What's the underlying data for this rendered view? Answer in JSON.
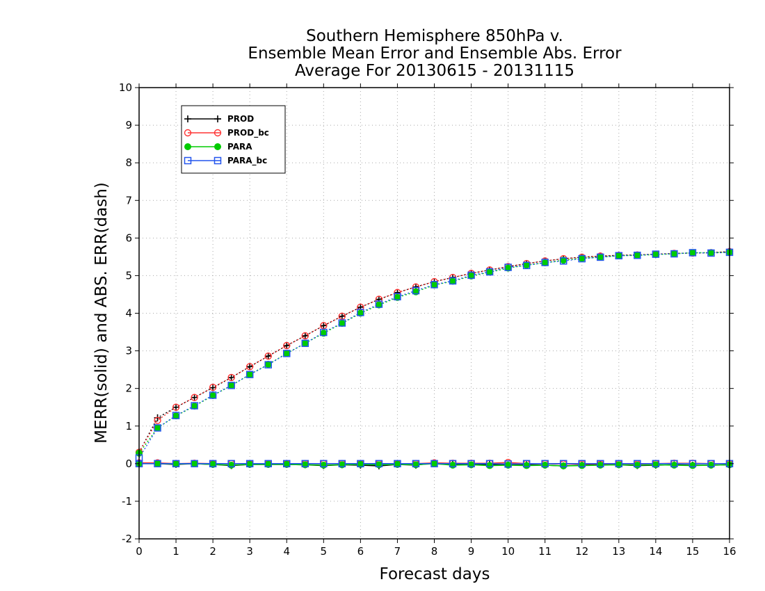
{
  "chart_data": {
    "type": "line",
    "title": [
      "Southern Hemisphere 850hPa v.",
      "Ensemble Mean Error and Ensemble Abs. Error",
      "Average For 20130615 - 20131115"
    ],
    "xlabel": "Forecast days",
    "ylabel": "MERR(solid) and ABS. ERR(dash)",
    "xlim": [
      0,
      16
    ],
    "ylim": [
      -2,
      10
    ],
    "xticks": [
      "0",
      "1",
      "2",
      "3",
      "4",
      "5",
      "6",
      "7",
      "8",
      "9",
      "10",
      "11",
      "12",
      "13",
      "14",
      "15",
      "16"
    ],
    "yticks": [
      "-2",
      "-1",
      "0",
      "1",
      "2",
      "3",
      "4",
      "5",
      "6",
      "7",
      "8",
      "9",
      "10"
    ],
    "grid": true,
    "legend_position": "top-left",
    "x": [
      0,
      0.5,
      1,
      1.5,
      2,
      2.5,
      3,
      3.5,
      4,
      4.5,
      5,
      5.5,
      6,
      6.5,
      7,
      7.5,
      8,
      8.5,
      9,
      9.5,
      10,
      10.5,
      11,
      11.5,
      12,
      12.5,
      13,
      13.5,
      14,
      14.5,
      15,
      15.5,
      16
    ],
    "series": [
      {
        "name": "PROD",
        "color": "#000000",
        "marker": "plus",
        "merr": [
          0.02,
          0.0,
          -0.02,
          0.0,
          -0.02,
          -0.05,
          -0.02,
          -0.02,
          -0.02,
          -0.03,
          -0.05,
          -0.03,
          -0.04,
          -0.06,
          -0.02,
          -0.04,
          0.02,
          -0.02,
          -0.03,
          -0.02,
          -0.04,
          -0.03,
          -0.04,
          -0.06,
          -0.04,
          -0.03,
          -0.03,
          -0.05,
          -0.04,
          -0.03,
          -0.04,
          -0.04,
          -0.03
        ],
        "abs_err": [
          0.3,
          1.22,
          1.5,
          1.76,
          2.02,
          2.29,
          2.58,
          2.86,
          3.14,
          3.4,
          3.67,
          3.92,
          4.16,
          4.37,
          4.55,
          4.7,
          4.84,
          4.95,
          5.06,
          5.15,
          5.24,
          5.32,
          5.39,
          5.45,
          5.49,
          5.52,
          5.54,
          5.55,
          5.57,
          5.59,
          5.6,
          5.61,
          5.64
        ]
      },
      {
        "name": "PROD_bc",
        "color": "#ff3333",
        "marker": "circle",
        "merr": [
          0.02,
          0.02,
          0.0,
          0.01,
          0.0,
          0.0,
          0.0,
          0.0,
          0.0,
          0.0,
          0.0,
          0.0,
          0.0,
          0.0,
          0.0,
          0.0,
          0.02,
          0.01,
          0.01,
          0.01,
          0.03,
          0.0,
          0.0,
          -0.01,
          -0.01,
          -0.01,
          0.0,
          -0.01,
          0.0,
          0.01,
          0.01,
          0.0,
          0.0
        ],
        "abs_err": [
          0.3,
          1.15,
          1.5,
          1.76,
          2.03,
          2.29,
          2.58,
          2.86,
          3.14,
          3.4,
          3.67,
          3.92,
          4.16,
          4.37,
          4.55,
          4.7,
          4.84,
          4.95,
          5.06,
          5.15,
          5.24,
          5.32,
          5.39,
          5.45,
          5.49,
          5.52,
          5.54,
          5.55,
          5.57,
          5.59,
          5.6,
          5.61,
          5.64
        ]
      },
      {
        "name": "PARA",
        "color": "#00cc00",
        "marker": "dot",
        "merr": [
          0.0,
          0.0,
          -0.01,
          0.0,
          -0.02,
          -0.04,
          -0.02,
          -0.02,
          -0.02,
          -0.03,
          -0.04,
          -0.03,
          -0.02,
          -0.03,
          -0.02,
          -0.03,
          0.0,
          -0.04,
          -0.03,
          -0.05,
          -0.04,
          -0.05,
          -0.04,
          -0.06,
          -0.05,
          -0.04,
          -0.03,
          -0.04,
          -0.03,
          -0.04,
          -0.05,
          -0.04,
          -0.03
        ],
        "abs_err": [
          0.28,
          0.95,
          1.27,
          1.53,
          1.81,
          2.08,
          2.37,
          2.64,
          2.93,
          3.2,
          3.47,
          3.73,
          4.0,
          4.22,
          4.42,
          4.57,
          4.75,
          4.85,
          4.99,
          5.09,
          5.2,
          5.28,
          5.34,
          5.41,
          5.46,
          5.49,
          5.53,
          5.54,
          5.56,
          5.58,
          5.61,
          5.61,
          5.62
        ]
      },
      {
        "name": "PARA_bc",
        "color": "#2255ee",
        "marker": "square",
        "merr": [
          0.0,
          0.0,
          0.0,
          0.0,
          0.0,
          0.0,
          0.0,
          0.0,
          0.0,
          0.0,
          0.0,
          0.0,
          0.0,
          0.0,
          0.0,
          0.0,
          0.0,
          0.0,
          0.0,
          0.0,
          -0.01,
          0.0,
          0.0,
          0.0,
          0.0,
          0.0,
          0.0,
          0.0,
          0.0,
          0.0,
          0.0,
          0.0,
          0.0
        ],
        "abs_err": [
          0.15,
          0.95,
          1.28,
          1.54,
          1.82,
          2.08,
          2.37,
          2.63,
          2.93,
          3.2,
          3.49,
          3.74,
          4.02,
          4.24,
          4.44,
          4.6,
          4.76,
          4.86,
          5.01,
          5.1,
          5.22,
          5.27,
          5.35,
          5.39,
          5.45,
          5.49,
          5.53,
          5.54,
          5.57,
          5.58,
          5.61,
          5.6,
          5.62
        ]
      }
    ]
  }
}
